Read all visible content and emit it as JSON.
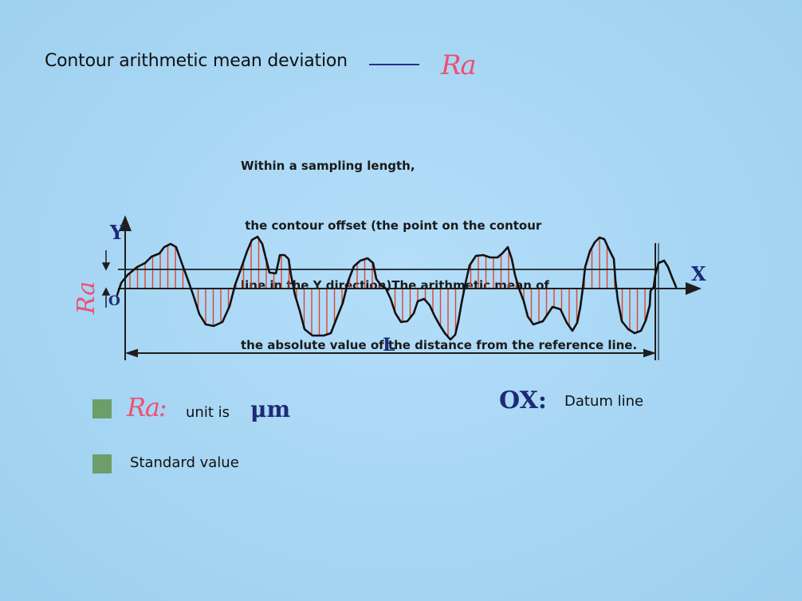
{
  "title": {
    "text": "Contour arithmetic mean deviation",
    "symbol": "Ra"
  },
  "description": {
    "lines": [
      "Within a sampling length,",
      " the contour offset (the point on the contour",
      "line in the Y direction)The arithmetic mean of",
      "the absolute value of the distance from the reference line."
    ]
  },
  "diagram": {
    "y_axis_label": "Y",
    "x_axis_label": "X",
    "origin_label": "O",
    "side_label": "Ra",
    "length_label": "L"
  },
  "legend": {
    "ra_symbol": "Ra:",
    "unit_text": "unit is",
    "unit": "μm",
    "standard_value": "Standard value",
    "datum_symbol": "OX:",
    "datum_text": "Datum line"
  },
  "colors": {
    "background": "#a9d6f2",
    "accent_pink": "#ef4f74",
    "axis_blue": "#1e2a78",
    "hatch_red": "#e0452c",
    "legend_green": "#6d9e6a"
  }
}
